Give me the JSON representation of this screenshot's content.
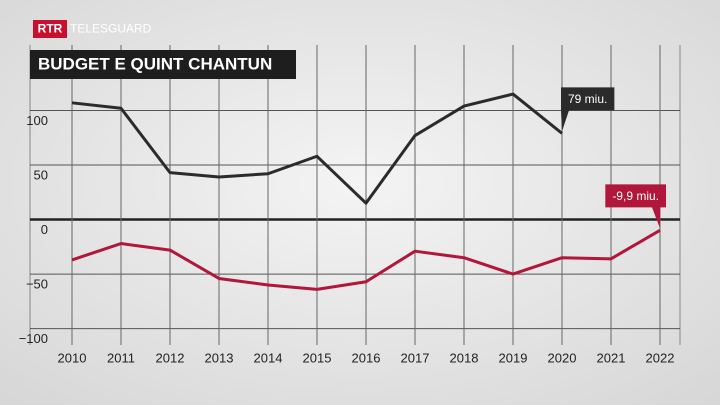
{
  "logo": {
    "badge": "RTR",
    "name": "TELESGUARD"
  },
  "chart_data": {
    "type": "line",
    "title": "BUDGET E QUINT CHANTUN",
    "x": [
      2010,
      2011,
      2012,
      2013,
      2014,
      2015,
      2016,
      2017,
      2018,
      2019,
      2020,
      2021,
      2022
    ],
    "xlim": [
      2010,
      2022
    ],
    "xticks": [
      2010,
      2011,
      2012,
      2013,
      2014,
      2015,
      2016,
      2017,
      2018,
      2019,
      2020,
      2021,
      2022
    ],
    "ylim": [
      -115,
      160
    ],
    "yticks": [
      {
        "value": -100,
        "label": "−100"
      },
      {
        "value": -50,
        "label": "−50"
      },
      0,
      50,
      100
    ],
    "grid": true,
    "series": [
      {
        "color": "#2b2b2b",
        "values": [
          107,
          102,
          43,
          39,
          42,
          58,
          15,
          77,
          104,
          115,
          79,
          null,
          null
        ],
        "value_labels": [
          null,
          null,
          null,
          null,
          null,
          null,
          null,
          null,
          null,
          null,
          "79 miu.",
          null,
          null
        ]
      },
      {
        "color": "#b0173a",
        "values": [
          -37,
          -22,
          -28,
          -54,
          -60,
          -64,
          -57,
          -29,
          -35,
          -50,
          -35,
          -36,
          -9.9
        ],
        "value_labels": [
          null,
          null,
          null,
          null,
          null,
          null,
          null,
          null,
          null,
          null,
          null,
          null,
          "-9,9 miu."
        ]
      }
    ]
  }
}
